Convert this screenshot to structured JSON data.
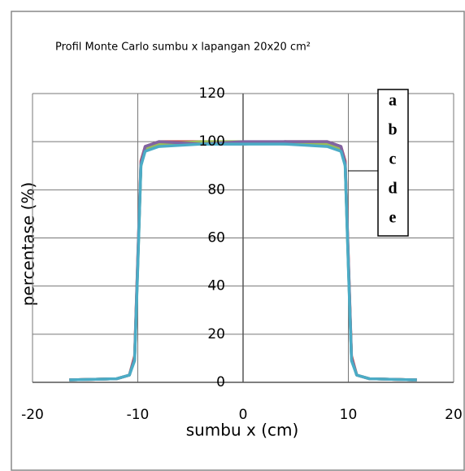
{
  "chart_data": {
    "type": "line",
    "title": "Profil Monte Carlo sumbu x  lapangan 20x20 cm²",
    "xlabel": "sumbu x (cm)",
    "ylabel": "percentase (%)",
    "xlim": [
      -20,
      20
    ],
    "xticks": [
      -20,
      -10,
      0,
      10,
      20
    ],
    "ylim": [
      0,
      120
    ],
    "yticks": [
      0,
      20,
      40,
      60,
      80,
      100,
      120
    ],
    "grid": true,
    "legend": "right",
    "x": [
      -16.5,
      -12,
      -10.8,
      -10.3,
      -10,
      -9.7,
      -9.3,
      -8,
      -4,
      0,
      4,
      8,
      9.3,
      9.7,
      10,
      10.3,
      10.8,
      12,
      16.5
    ],
    "series": [
      {
        "name": "a",
        "color": "#4f81bd",
        "values": [
          1,
          1.5,
          3,
          10,
          50,
          91,
          97,
          99,
          99,
          99,
          100,
          99,
          97,
          91,
          50,
          10,
          3,
          1.5,
          1
        ]
      },
      {
        "name": "b",
        "color": "#c0504d",
        "values": [
          1,
          1.5,
          3,
          11,
          52,
          92,
          98,
          100,
          100,
          99,
          100,
          100,
          98,
          92,
          52,
          11,
          3,
          1.5,
          1
        ]
      },
      {
        "name": "c",
        "color": "#9bbb59",
        "values": [
          1,
          1.5,
          3,
          10,
          49,
          90,
          97,
          99,
          100,
          100,
          99,
          99,
          97,
          90,
          49,
          10,
          3,
          1.5,
          1
        ]
      },
      {
        "name": "d",
        "color": "#8064a2",
        "values": [
          1,
          1.5,
          3,
          10,
          51,
          91,
          98,
          100,
          99,
          100,
          100,
          100,
          98,
          91,
          51,
          10,
          3,
          1.5,
          1
        ]
      },
      {
        "name": "e",
        "color": "#4bacc6",
        "values": [
          1,
          1.5,
          3,
          9,
          48,
          90,
          96,
          98,
          99,
          99,
          99,
          98,
          96,
          90,
          48,
          9,
          3,
          1.5,
          1
        ]
      }
    ]
  }
}
